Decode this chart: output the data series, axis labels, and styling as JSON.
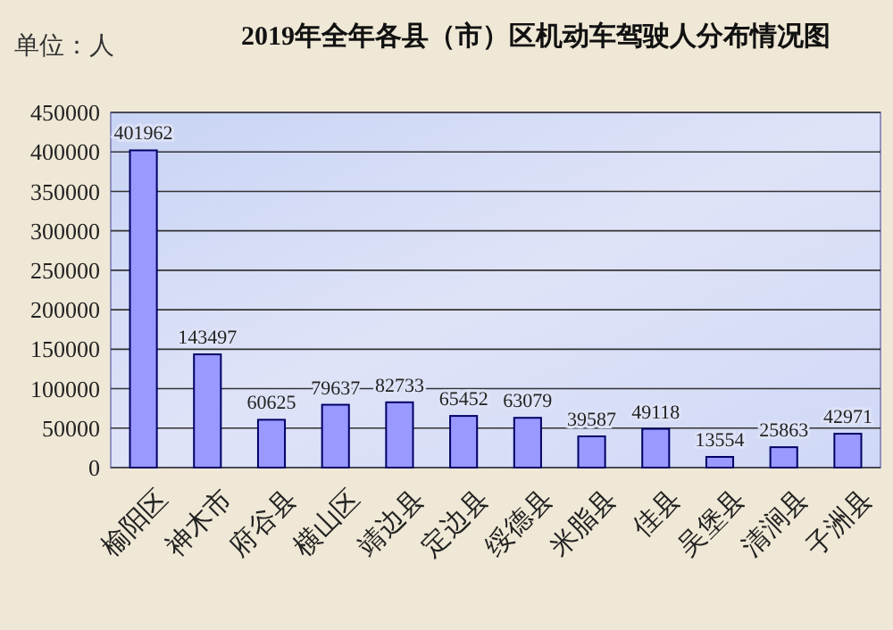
{
  "chart_data": {
    "type": "bar",
    "title": "2019年全年各县（市）区机动车驾驶人分布情况图",
    "annotations": [
      "单位：人"
    ],
    "categories": [
      "榆阳区",
      "神木市",
      "府谷县",
      "横山区",
      "靖边县",
      "定边县",
      "绥德县",
      "米脂县",
      "佳县",
      "吴堡县",
      "清涧县",
      "子洲县"
    ],
    "values": [
      401962,
      143497,
      60625,
      79637,
      82733,
      65452,
      63079,
      39587,
      49118,
      13554,
      25863,
      42971
    ],
    "color": "#9999ff",
    "ylim": [
      0,
      450000
    ],
    "yticks": [
      0,
      50000,
      100000,
      150000,
      200000,
      250000,
      300000,
      350000,
      400000,
      450000
    ],
    "grid": "y",
    "data_labels": true
  }
}
